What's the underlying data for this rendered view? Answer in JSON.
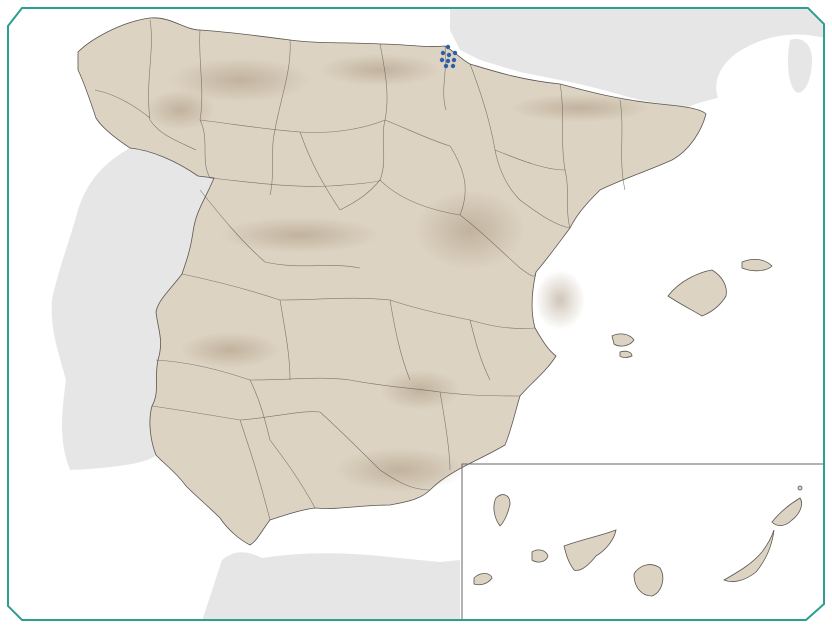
{
  "map": {
    "colors": {
      "frame": "#2e9f8e",
      "sea": "#ffffff",
      "foreign_land": "#e6e6e7",
      "terrain": "#ddd3c2",
      "terrain_dark": "#b8a891",
      "border": "#5a5650",
      "inset_border": "#666666",
      "marker": "#2f5fa7"
    },
    "layers": {
      "relief_shading": true,
      "province_borders": true,
      "canary_islands_inset": true,
      "location_marker_cluster": true
    },
    "marker_count": 9
  }
}
